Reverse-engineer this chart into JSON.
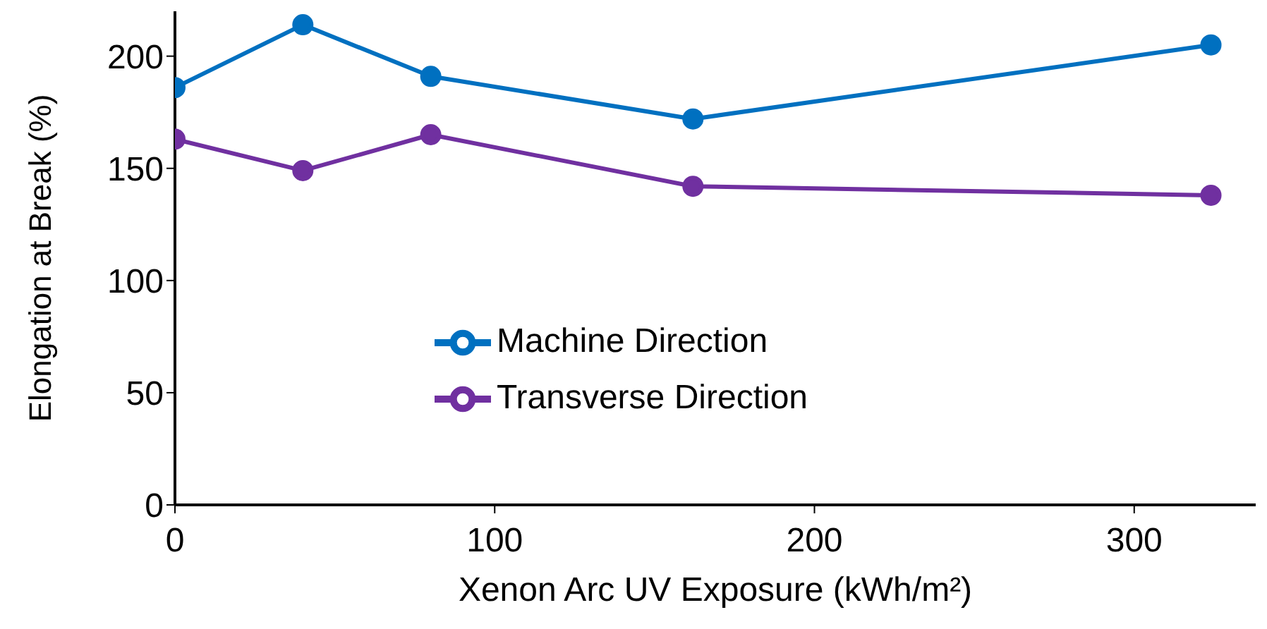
{
  "chart_data": {
    "type": "line",
    "xlabel": "Xenon Arc UV Exposure (kWh/m²)",
    "ylabel": "Elongation at Break (%)",
    "x": [
      0,
      40,
      80,
      162,
      324
    ],
    "series": [
      {
        "name": "Machine Direction",
        "color": "#0070c0",
        "values": [
          186,
          214,
          191,
          172,
          205
        ]
      },
      {
        "name": "Transverse Direction",
        "color": "#7030a0",
        "values": [
          163,
          149,
          165,
          142,
          138
        ]
      }
    ],
    "xlim": [
      0,
      338
    ],
    "xticks": [
      0,
      100,
      200,
      300
    ],
    "ylim": [
      0,
      220
    ],
    "yticks": [
      0,
      50,
      100,
      150,
      200
    ],
    "grid": false,
    "legend": "center",
    "marker": "circle",
    "line_style": "solid"
  }
}
